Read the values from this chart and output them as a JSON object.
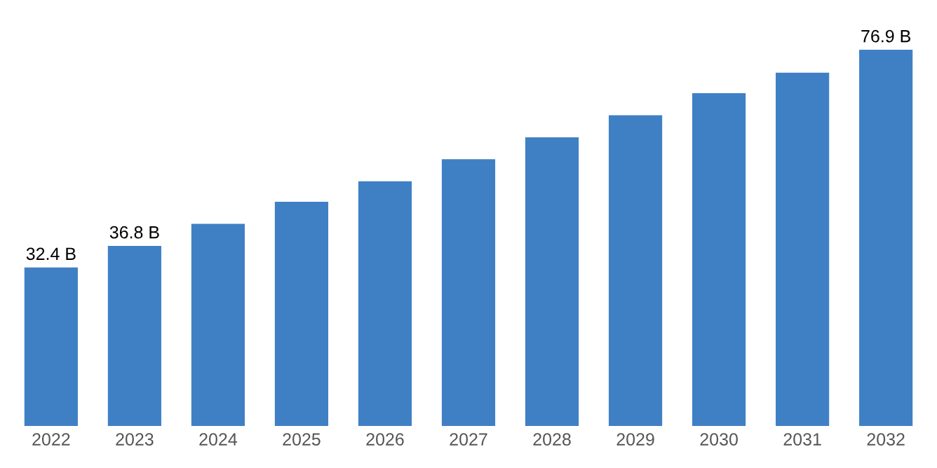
{
  "chart_data": {
    "type": "bar",
    "categories": [
      "2022",
      "2023",
      "2024",
      "2025",
      "2026",
      "2027",
      "2028",
      "2029",
      "2030",
      "2031",
      "2032"
    ],
    "values": [
      32.4,
      36.8,
      41.3,
      45.8,
      50.0,
      54.5,
      59.0,
      63.5,
      68.0,
      72.2,
      76.9
    ],
    "value_labels": [
      "32.4 B",
      "36.8 B",
      null,
      null,
      null,
      null,
      null,
      null,
      null,
      null,
      "76.9 B"
    ],
    "color": "#3f80c5",
    "grid": false,
    "legend": false
  }
}
